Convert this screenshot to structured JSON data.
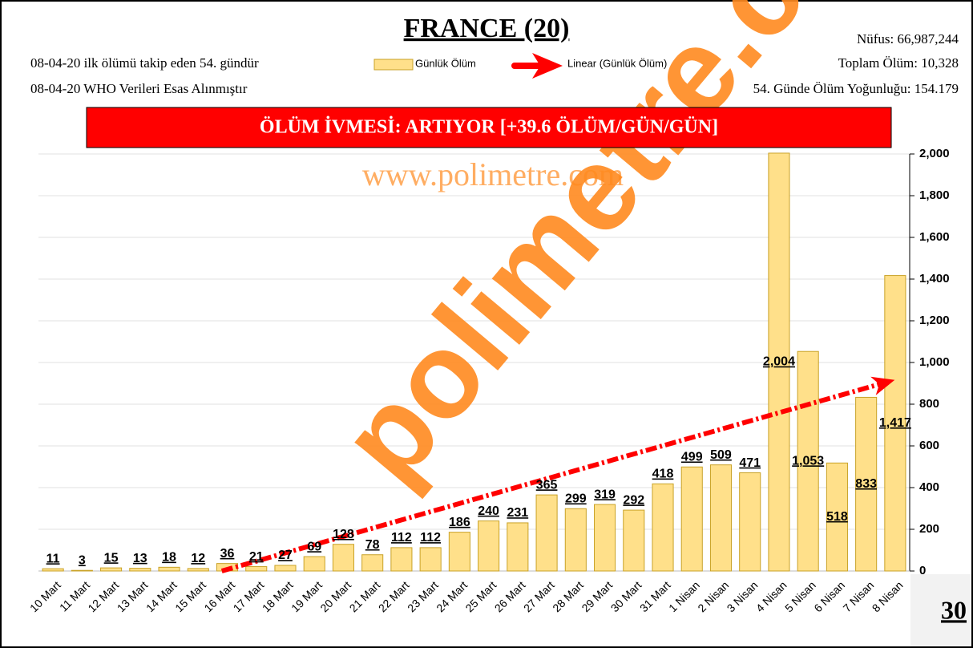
{
  "chart_data": {
    "type": "bar",
    "title": "FRANCE (20)",
    "info_left": [
      "08-04-20 ilk ölümü takip eden 54. gündür",
      "08-04-20 WHO Verileri Esas Alınmıştır"
    ],
    "info_right": [
      "Nüfus: 66,987,244",
      "Toplam Ölüm: 10,328",
      "54. Günde Ölüm Yoğunluğu: 154.179"
    ],
    "banner": "ÖLÜM İVMESİ: ARTIYOR [+39.6 ÖLÜM/GÜN/GÜN]",
    "watermark": "www.polimetre.com",
    "watermark_big": "polimetre.com",
    "page_number": "30",
    "trend_name": "Linear (Günlük Ölüm)",
    "series": [
      {
        "name": "Günlük Ölüm",
        "color": "#ffe08a",
        "values": [
          11,
          3,
          15,
          13,
          18,
          12,
          36,
          21,
          27,
          69,
          128,
          78,
          112,
          112,
          186,
          240,
          231,
          365,
          299,
          319,
          292,
          418,
          499,
          509,
          471,
          2004,
          1053,
          518,
          833,
          1417
        ],
        "value_labels": [
          "11",
          "3",
          "15",
          "13",
          "18",
          "12",
          "36",
          "21",
          "27",
          "69",
          "128",
          "78",
          "112",
          "112",
          "186",
          "240",
          "231",
          "365",
          "299",
          "319",
          "292",
          "418",
          "499",
          "509",
          "471",
          "2,004",
          "1,053",
          "518",
          "833",
          "1,417"
        ]
      }
    ],
    "categories": [
      "10 Mart",
      "11 Mart",
      "12 Mart",
      "13 Mart",
      "14 Mart",
      "15 Mart",
      "16 Mart",
      "17 Mart",
      "18 Mart",
      "19 Mart",
      "20 Mart",
      "21 Mart",
      "22 Mart",
      "23 Mart",
      "24 Mart",
      "25 Mart",
      "26 Mart",
      "27 Mart",
      "28 Mart",
      "29 Mart",
      "30 Mart",
      "31 Mart",
      "1 Nisan",
      "2 Nisan",
      "3 Nisan",
      "4 Nisan",
      "5 Nisan",
      "6 Nisan",
      "7 Nisan",
      "8 Nisan"
    ],
    "ylim": [
      0,
      2000
    ],
    "yticks": [
      0,
      200,
      400,
      600,
      800,
      {
        "value": 1000,
        "label": "1,000"
      },
      {
        "value": 1200,
        "label": "1,200"
      },
      {
        "value": 1400,
        "label": "1,400"
      },
      {
        "value": 1600,
        "label": "1,600"
      },
      {
        "value": 1800,
        "label": "1,800"
      },
      {
        "value": 2000,
        "label": "2,000"
      }
    ],
    "grid": true
  }
}
